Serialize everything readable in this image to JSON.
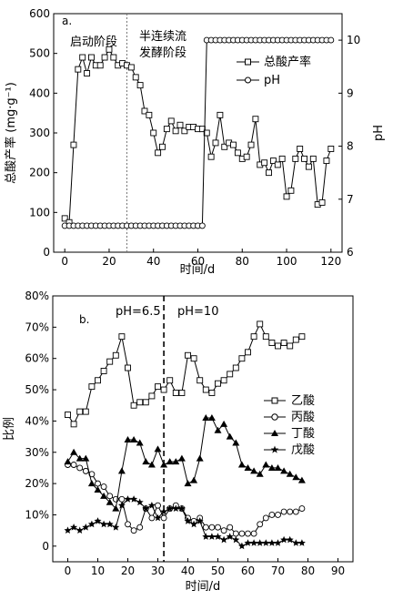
{
  "chart_data": [
    {
      "id": "a",
      "type": "line",
      "panel_label": "a.",
      "xlabel": "时间/d",
      "ylabel": "总酸产率 (mg·g⁻¹)",
      "y2label": "pH",
      "xlim": [
        -5,
        125
      ],
      "ylim": [
        0,
        600
      ],
      "y2lim": [
        6,
        10.5
      ],
      "xticks": [
        0,
        20,
        40,
        60,
        80,
        100,
        120
      ],
      "yticks": [
        0,
        100,
        200,
        300,
        400,
        500,
        600
      ],
      "y2ticks": [
        6,
        7,
        8,
        9,
        10
      ],
      "divider_x": 28,
      "annotations": [
        "启动阶段",
        "半连续流",
        "发酵阶段"
      ],
      "legend": [
        "总酸产率",
        "pH"
      ],
      "series": [
        {
          "name": "总酸产率",
          "marker": "square",
          "axis": "left",
          "x": [
            0,
            2,
            4,
            6,
            8,
            10,
            12,
            14,
            16,
            18,
            20,
            22,
            24,
            26,
            28,
            30,
            32,
            34,
            36,
            38,
            40,
            42,
            44,
            46,
            48,
            50,
            52,
            54,
            56,
            58,
            60,
            62,
            64,
            66,
            68,
            70,
            72,
            74,
            76,
            78,
            80,
            82,
            84,
            86,
            88,
            90,
            92,
            94,
            96,
            98,
            100,
            102,
            104,
            106,
            108,
            110,
            112,
            114,
            116,
            118,
            120
          ],
          "y": [
            85,
            75,
            270,
            460,
            490,
            450,
            490,
            470,
            470,
            490,
            510,
            490,
            470,
            475,
            470,
            465,
            440,
            420,
            355,
            345,
            300,
            250,
            265,
            310,
            330,
            305,
            320,
            305,
            315,
            315,
            310,
            310,
            300,
            240,
            275,
            345,
            265,
            275,
            270,
            250,
            235,
            240,
            270,
            335,
            220,
            225,
            200,
            230,
            220,
            235,
            140,
            155,
            235,
            260,
            235,
            215,
            235,
            120,
            125,
            230,
            260
          ]
        },
        {
          "name": "pH",
          "marker": "circle",
          "axis": "right",
          "x": [
            0,
            2,
            4,
            6,
            8,
            10,
            12,
            14,
            16,
            18,
            20,
            22,
            24,
            26,
            28,
            30,
            32,
            34,
            36,
            38,
            40,
            42,
            44,
            46,
            48,
            50,
            52,
            54,
            56,
            58,
            60,
            62,
            64,
            66,
            68,
            70,
            72,
            74,
            76,
            78,
            80,
            82,
            84,
            86,
            88,
            90,
            92,
            94,
            96,
            98,
            100,
            102,
            104,
            106,
            108,
            110,
            112,
            114,
            116,
            118,
            120
          ],
          "y": [
            6.5,
            6.5,
            6.5,
            6.5,
            6.5,
            6.5,
            6.5,
            6.5,
            6.5,
            6.5,
            6.5,
            6.5,
            6.5,
            6.5,
            6.5,
            6.5,
            6.5,
            6.5,
            6.5,
            6.5,
            6.5,
            6.5,
            6.5,
            6.5,
            6.5,
            6.5,
            6.5,
            6.5,
            6.5,
            6.5,
            6.5,
            6.5,
            10,
            10,
            10,
            10,
            10,
            10,
            10,
            10,
            10,
            10,
            10,
            10,
            10,
            10,
            10,
            10,
            10,
            10,
            10,
            10,
            10,
            10,
            10,
            10,
            10,
            10,
            10,
            10,
            10
          ]
        }
      ]
    },
    {
      "id": "b",
      "type": "line",
      "panel_label": "b.",
      "xlabel": "时间/d",
      "ylabel": "比例",
      "xlim": [
        -5,
        95
      ],
      "ylim": [
        -5,
        80
      ],
      "xticks": [
        0,
        10,
        20,
        30,
        40,
        50,
        60,
        70,
        80,
        90
      ],
      "yticks": [
        0,
        10,
        20,
        30,
        40,
        50,
        60,
        70,
        80
      ],
      "ytick_labels": [
        "0",
        "10%",
        "20%",
        "30%",
        "40%",
        "50%",
        "60%",
        "70%",
        "80%"
      ],
      "divider_x": 32,
      "annotations": [
        "pH=6.5",
        "pH=10"
      ],
      "legend": [
        "乙酸",
        "丙酸",
        "丁酸",
        "戊酸"
      ],
      "series": [
        {
          "name": "乙酸",
          "marker": "square",
          "x": [
            0,
            2,
            4,
            6,
            8,
            10,
            12,
            14,
            16,
            18,
            20,
            22,
            24,
            26,
            28,
            30,
            32,
            34,
            36,
            38,
            40,
            42,
            44,
            46,
            48,
            50,
            52,
            54,
            56,
            58,
            60,
            62,
            64,
            66,
            68,
            70,
            72,
            74,
            76,
            78
          ],
          "y": [
            42,
            39,
            43,
            43,
            51,
            53,
            56,
            59,
            61,
            67,
            57,
            45,
            46,
            46,
            48,
            51,
            50,
            53,
            49,
            49,
            61,
            60,
            53,
            50,
            49,
            52,
            53,
            55,
            57,
            60,
            62,
            67,
            71,
            67,
            65,
            64,
            65,
            64,
            66,
            67
          ]
        },
        {
          "name": "丙酸",
          "marker": "circle",
          "x": [
            0,
            2,
            4,
            6,
            8,
            10,
            12,
            14,
            16,
            18,
            20,
            22,
            24,
            26,
            28,
            30,
            32,
            34,
            36,
            38,
            40,
            42,
            44,
            46,
            48,
            50,
            52,
            54,
            56,
            58,
            60,
            62,
            64,
            66,
            68,
            70,
            72,
            74,
            76,
            78
          ],
          "y": [
            26,
            26,
            25,
            24,
            23,
            20,
            19,
            16,
            15,
            15,
            7,
            5,
            6,
            12,
            9,
            13,
            9,
            12,
            13,
            12,
            9,
            8,
            9,
            6,
            6,
            6,
            5,
            6,
            4,
            4,
            4,
            4,
            7,
            9,
            10,
            10,
            11,
            11,
            11,
            12
          ]
        },
        {
          "name": "丁酸",
          "marker": "triangle",
          "x": [
            0,
            2,
            4,
            6,
            8,
            10,
            12,
            14,
            16,
            18,
            20,
            22,
            24,
            26,
            28,
            30,
            32,
            34,
            36,
            38,
            40,
            42,
            44,
            46,
            48,
            50,
            52,
            54,
            56,
            58,
            60,
            62,
            64,
            66,
            68,
            70,
            72,
            74,
            76,
            78
          ],
          "y": [
            27,
            30,
            28,
            28,
            20,
            18,
            16,
            14,
            12,
            24,
            34,
            34,
            33,
            27,
            26,
            31,
            26,
            27,
            27,
            28,
            20,
            21,
            28,
            41,
            41,
            37,
            39,
            35,
            33,
            26,
            25,
            24,
            23,
            26,
            25,
            25,
            24,
            23,
            22,
            21
          ]
        },
        {
          "name": "戊酸",
          "marker": "star",
          "x": [
            0,
            2,
            4,
            6,
            8,
            10,
            12,
            14,
            16,
            18,
            20,
            22,
            24,
            26,
            28,
            30,
            32,
            34,
            36,
            38,
            40,
            42,
            44,
            46,
            48,
            50,
            52,
            54,
            56,
            58,
            60,
            62,
            64,
            66,
            68,
            70,
            72,
            74,
            76,
            78
          ],
          "y": [
            5,
            6,
            5,
            6,
            7,
            8,
            7,
            7,
            6,
            13,
            15,
            15,
            14,
            12,
            13,
            9,
            11,
            12,
            12,
            12,
            8,
            7,
            8,
            3,
            3,
            3,
            2,
            3,
            2,
            0,
            1,
            1,
            1,
            1,
            1,
            1,
            2,
            2,
            1,
            1
          ]
        }
      ]
    }
  ]
}
